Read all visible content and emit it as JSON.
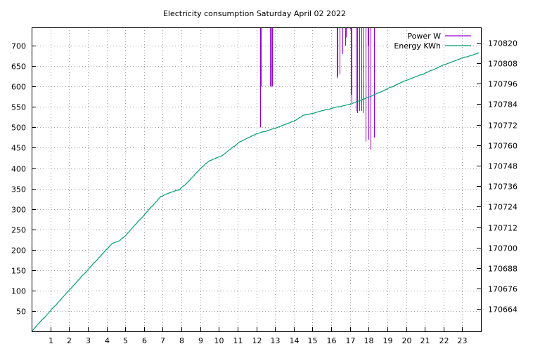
{
  "chart_data": {
    "type": "line",
    "title": "Electricity consumption Saturday April 02 2022",
    "x": [
      0,
      1,
      2,
      3,
      4,
      4.3,
      4.7,
      5,
      6,
      6.9,
      7.2,
      7.9,
      8.3,
      9,
      9.5,
      10.2,
      11,
      11.3,
      12,
      13,
      14,
      14.5,
      15,
      16,
      17,
      18,
      19,
      20,
      21,
      22,
      22.5,
      23,
      23.9
    ],
    "x_ticks": [
      1,
      2,
      3,
      4,
      5,
      6,
      7,
      8,
      9,
      10,
      11,
      12,
      13,
      14,
      15,
      16,
      17,
      18,
      19,
      20,
      21,
      22,
      23
    ],
    "xlim": [
      0,
      24
    ],
    "ylim": [
      0,
      745
    ],
    "y_ticks": [
      50,
      100,
      150,
      200,
      250,
      300,
      350,
      400,
      450,
      500,
      550,
      600,
      650,
      700
    ],
    "y2lim": [
      170651,
      170829
    ],
    "y2_ticks": [
      170664,
      170676,
      170688,
      170700,
      170712,
      170724,
      170736,
      170748,
      170760,
      170772,
      170784,
      170796,
      170808,
      170820
    ],
    "grid": true,
    "legend_position": "top-right",
    "series": [
      {
        "name": "Power W",
        "color": "#9400d3",
        "axis": "y1",
        "style": "impulse-from-top",
        "points": [
          [
            12.2,
            500
          ],
          [
            12.25,
            600
          ],
          [
            12.75,
            600
          ],
          [
            12.8,
            600
          ],
          [
            12.85,
            600
          ],
          [
            16.3,
            620
          ],
          [
            16.35,
            625
          ],
          [
            16.45,
            630
          ],
          [
            16.6,
            680
          ],
          [
            16.75,
            700
          ],
          [
            16.8,
            720
          ],
          [
            17.0,
            740
          ],
          [
            17.05,
            580
          ],
          [
            17.1,
            560
          ],
          [
            17.3,
            540
          ],
          [
            17.4,
            535
          ],
          [
            17.5,
            540
          ],
          [
            17.6,
            540
          ],
          [
            17.7,
            535
          ],
          [
            17.85,
            465
          ],
          [
            17.95,
            700
          ],
          [
            18.0,
            470
          ],
          [
            18.1,
            445
          ],
          [
            18.3,
            475
          ]
        ]
      },
      {
        "name": "Energy KWh",
        "color": "#009e73",
        "axis": "y2",
        "style": "line",
        "values": [
          170651,
          170663,
          170675,
          170687,
          170699,
          170702.5,
          170704,
          170707,
          170719,
          170730,
          170731.5,
          170734,
          170738,
          170746,
          170751,
          170754,
          170761,
          170763,
          170766.5,
          170770,
          170774,
          170777.3,
          170778.7,
          170781.5,
          170784,
          170788,
          170793,
          170798,
          170802,
          170807,
          170809,
          170811,
          170814
        ]
      }
    ]
  }
}
